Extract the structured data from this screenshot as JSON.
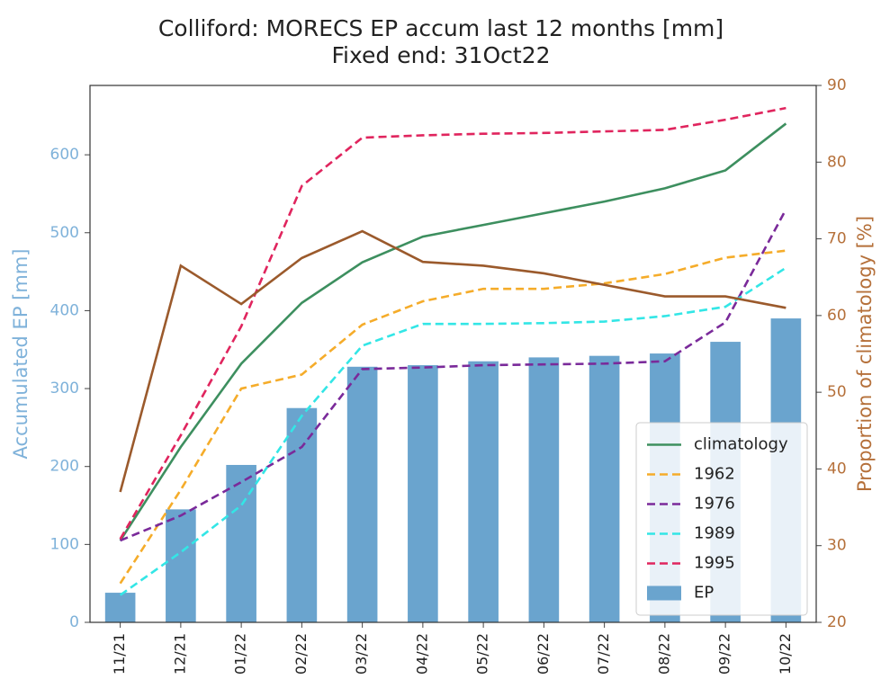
{
  "chart_data": {
    "type": "combo",
    "title": "Colliford: MORECS EP accum last 12 months [mm]",
    "subtitle": "Fixed end: 31Oct22",
    "y_label": "Accumulated EP [mm]",
    "y2_label": "Proportion of climatology [%]",
    "categories": [
      "11/21",
      "12/21",
      "01/22",
      "02/22",
      "03/22",
      "04/22",
      "05/22",
      "06/22",
      "07/22",
      "08/22",
      "09/22",
      "10/22"
    ],
    "ylim": [
      0,
      689
    ],
    "yticks": [
      0,
      100,
      200,
      300,
      400,
      500,
      600
    ],
    "y2lim": [
      20,
      90
    ],
    "y2ticks": [
      20,
      30,
      40,
      50,
      60,
      70,
      80,
      90
    ],
    "y_color": "#7fb2da",
    "y2_color": "#b5703a",
    "legend": "lower right",
    "series": [
      {
        "name": "climatology",
        "style": "line",
        "color": "#3d8f5f",
        "values": [
          105,
          225,
          332,
          410,
          462,
          495,
          510,
          525,
          540,
          557,
          580,
          640
        ]
      },
      {
        "name": "1962",
        "style": "line",
        "linestyle": "dashed",
        "color": "#f5ac2a",
        "values": [
          50,
          170,
          300,
          318,
          382,
          412,
          428,
          428,
          435,
          447,
          468,
          477
        ]
      },
      {
        "name": "1976",
        "style": "line",
        "linestyle": "dashed",
        "color": "#7a2a9a",
        "values": [
          105,
          137,
          180,
          225,
          325,
          327,
          330,
          331,
          332,
          335,
          385,
          530
        ]
      },
      {
        "name": "1989",
        "style": "line",
        "linestyle": "dashed",
        "color": "#33e6e6",
        "values": [
          35,
          90,
          150,
          265,
          355,
          383,
          383,
          384,
          386,
          393,
          405,
          455
        ]
      },
      {
        "name": "1995",
        "style": "line",
        "linestyle": "dashed",
        "color": "#e0255e",
        "values": [
          107,
          240,
          380,
          560,
          622,
          625,
          627,
          628,
          630,
          632,
          645,
          660
        ]
      },
      {
        "name": "EP",
        "style": "bar",
        "color": "#6aa4ce",
        "values": [
          38,
          145,
          202,
          275,
          328,
          330,
          335,
          340,
          342,
          345,
          360,
          390
        ]
      },
      {
        "style": "line",
        "axis": "y2",
        "color": "#9b5a2c",
        "values": [
          37,
          66.5,
          61.5,
          67.5,
          71,
          67,
          66.5,
          65.5,
          64,
          62.5,
          62.5,
          61
        ]
      }
    ]
  }
}
